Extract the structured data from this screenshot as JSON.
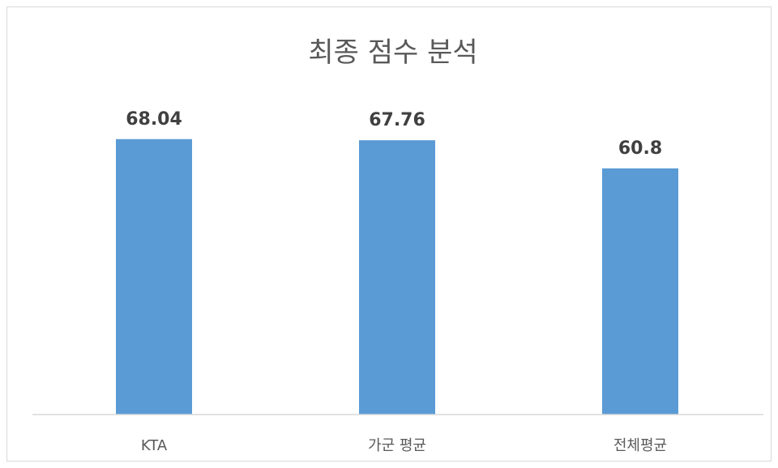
{
  "chart_data": {
    "type": "bar",
    "title": "최종 점수 분석",
    "categories": [
      "KTA",
      "가군 평균",
      "전체평균"
    ],
    "values": [
      68.04,
      67.76,
      60.8
    ],
    "value_labels": [
      "68.04",
      "67.76",
      "60.8"
    ],
    "xlabel": "",
    "ylabel": "",
    "ylim": [
      0,
      80
    ],
    "grid": false,
    "legend": "none",
    "bar_color": "#5b9bd5",
    "axis_color": "#d9d9d9"
  }
}
